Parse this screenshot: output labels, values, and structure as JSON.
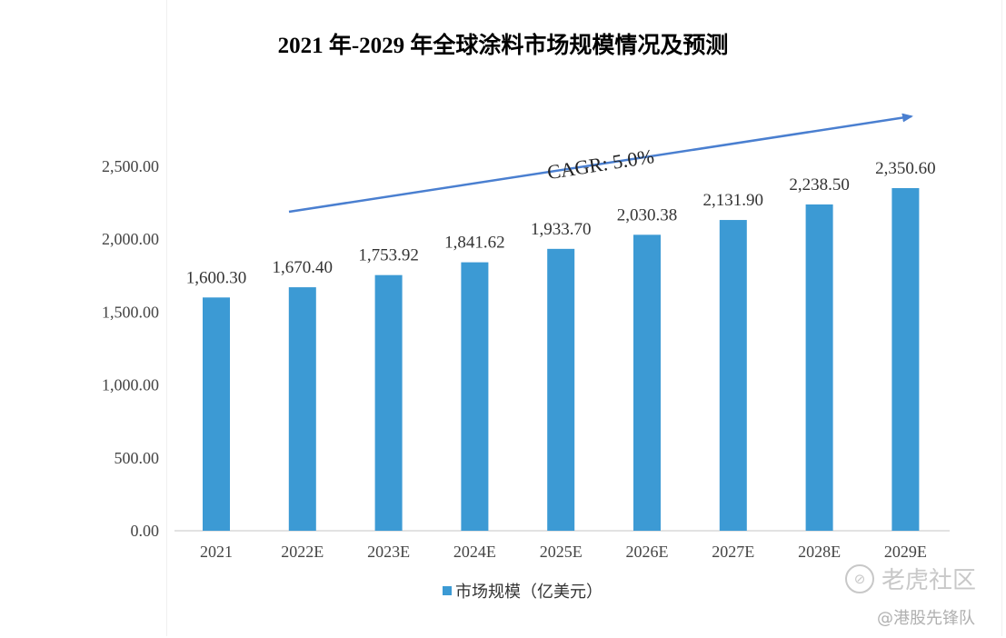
{
  "chart_data": {
    "type": "bar",
    "title": "2021 年-2029 年全球涂料市场规模情况及预测",
    "categories": [
      "2021",
      "2022E",
      "2023E",
      "2024E",
      "2025E",
      "2026E",
      "2027E",
      "2028E",
      "2029E"
    ],
    "series": [
      {
        "name": "市场规模（亿美元）",
        "values": [
          1600.3,
          1670.4,
          1753.92,
          1841.62,
          1933.7,
          2030.38,
          2131.9,
          2238.5,
          2350.6
        ],
        "labels": [
          "1,600.30",
          "1,670.40",
          "1,753.92",
          "1,841.62",
          "1,933.70",
          "2,030.38",
          "2,131.90",
          "2,238.50",
          "2,350.60"
        ]
      }
    ],
    "ylim": [
      0,
      2500
    ],
    "yticks": [
      0,
      500,
      1000,
      1500,
      2000,
      2500
    ],
    "ytick_labels": [
      "0.00",
      "500.00",
      "1,000.00",
      "1,500.00",
      "2,000.00",
      "2,500.00"
    ],
    "xlabel": "",
    "ylabel": "",
    "annotation": "CAGR: 5.0%",
    "grid": false,
    "legend_position": "bottom-center",
    "bar_color": "#3c9ad4",
    "arrow_color": "#4a7fd0"
  },
  "watermark": {
    "logo_text": "老虎社区",
    "handle_text": "@港股先锋队"
  }
}
